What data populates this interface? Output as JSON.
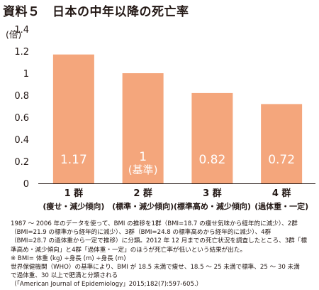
{
  "title": "資料５　日本の中年以降の死亡率",
  "ylabel": "(倍)",
  "chart_data": {
    "type": "bar",
    "title": "資料５　日本の中年以降の死亡率",
    "ylabel": "(倍)",
    "ylim": [
      0,
      1.4
    ],
    "yticks": [
      "0",
      "0.2",
      "0.4",
      "0.6",
      "0.8",
      "1",
      "1.2",
      "1.4"
    ],
    "categories": [
      {
        "group": "1 群",
        "desc": "(痩せ・減少傾向)"
      },
      {
        "group": "2 群",
        "desc": "(標準・減少傾向)"
      },
      {
        "group": "3 群",
        "desc": "(標準高め・減少傾向)"
      },
      {
        "group": "4 群",
        "desc": "(過体重・一定)"
      }
    ],
    "values": [
      1.17,
      1,
      0.82,
      0.72
    ],
    "data_labels": [
      [
        "1.17"
      ],
      [
        "1",
        "(基準)"
      ],
      [
        "0.82"
      ],
      [
        "0.72"
      ]
    ],
    "bar_color": "#f4a67c",
    "label_color": "#ffffff",
    "grid": false
  },
  "notes": [
    "1987 ～ 2006 年のデータを使って、BMI の推移を1群（BMI=18.7 の痩せ気味から経年的に減少）、2群",
    "（BMI=21.9 の標準から経年的に減少）、3群（BMI=24.8 の標準高めから経年的に減少）、4群",
    "（BMI=28.7 の過体重から一定で推移）に分類。2012 年 12 月までの死亡状況を調査したところ、3群「標",
    "準高め・減少傾向」と4群「過体重・一定」のほうが死亡率が低いという結果が出た。",
    "※ BMI= 体重 (kg) ÷身長 (m) ÷身長 (m)",
    "世界保健機関（WHO）の基準により、BMI が 18.5 未満で痩せ、18.5 ～ 25 未満で標準、25 ～ 30 未満",
    "で過体重、30 以上で肥満と分類される",
    "（「American Journal of Epidemiology」2015;182(7):597-605.）"
  ]
}
